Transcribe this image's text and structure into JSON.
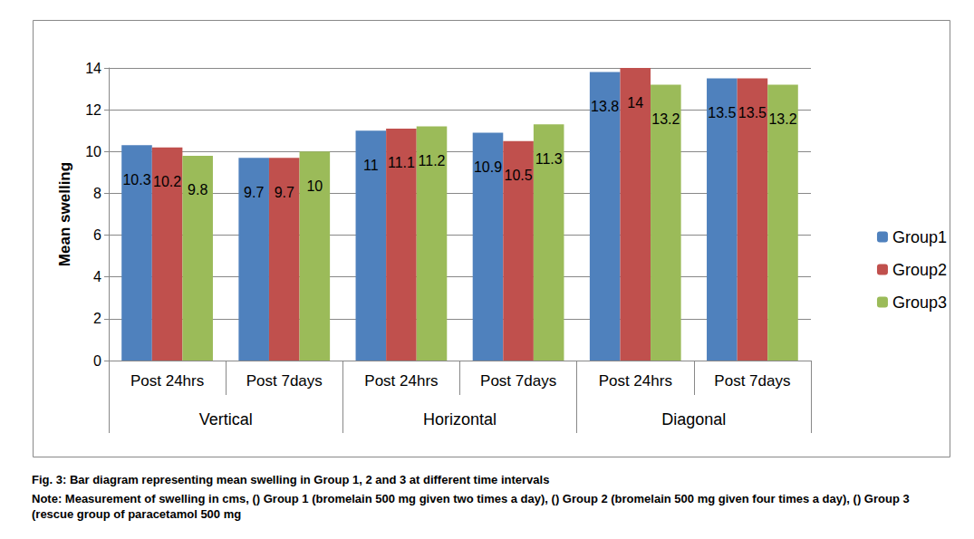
{
  "chart_data": {
    "type": "bar",
    "title": "Fig. 3: Bar diagram representing mean swelling in Group 1, 2 and 3 at different time intervals",
    "note": "Note: Measurement of swelling in cms, () Group 1 (bromelain 500 mg given two times a day), () Group 2 (bromelain 500 mg given four times a day), () Group 3 (rescue group of paracetamol 500 mg",
    "y_label": "Mean swelling",
    "categories": [
      "Post 24hrs",
      "Post 7days",
      "Post 24hrs",
      "Post 7days",
      "Post 24hrs",
      "Post 7days"
    ],
    "category_groups": [
      "Vertical",
      "Horizontal",
      "Diagonal"
    ],
    "series": [
      {
        "name": "Group1",
        "color": "#4f81bd",
        "values": [
          10.3,
          9.7,
          11,
          10.9,
          13.8,
          13.5
        ]
      },
      {
        "name": "Group2",
        "color": "#c0504d",
        "values": [
          10.2,
          9.7,
          11.1,
          10.5,
          14,
          13.5
        ]
      },
      {
        "name": "Group3",
        "color": "#9bbb59",
        "values": [
          9.8,
          10,
          11.2,
          11.3,
          13.2,
          13.2
        ]
      }
    ],
    "ylim": [
      0,
      14
    ],
    "yticks": [
      0,
      2,
      4,
      6,
      8,
      10,
      12,
      14
    ],
    "grid": true,
    "legend": "right",
    "data_labels": true
  }
}
